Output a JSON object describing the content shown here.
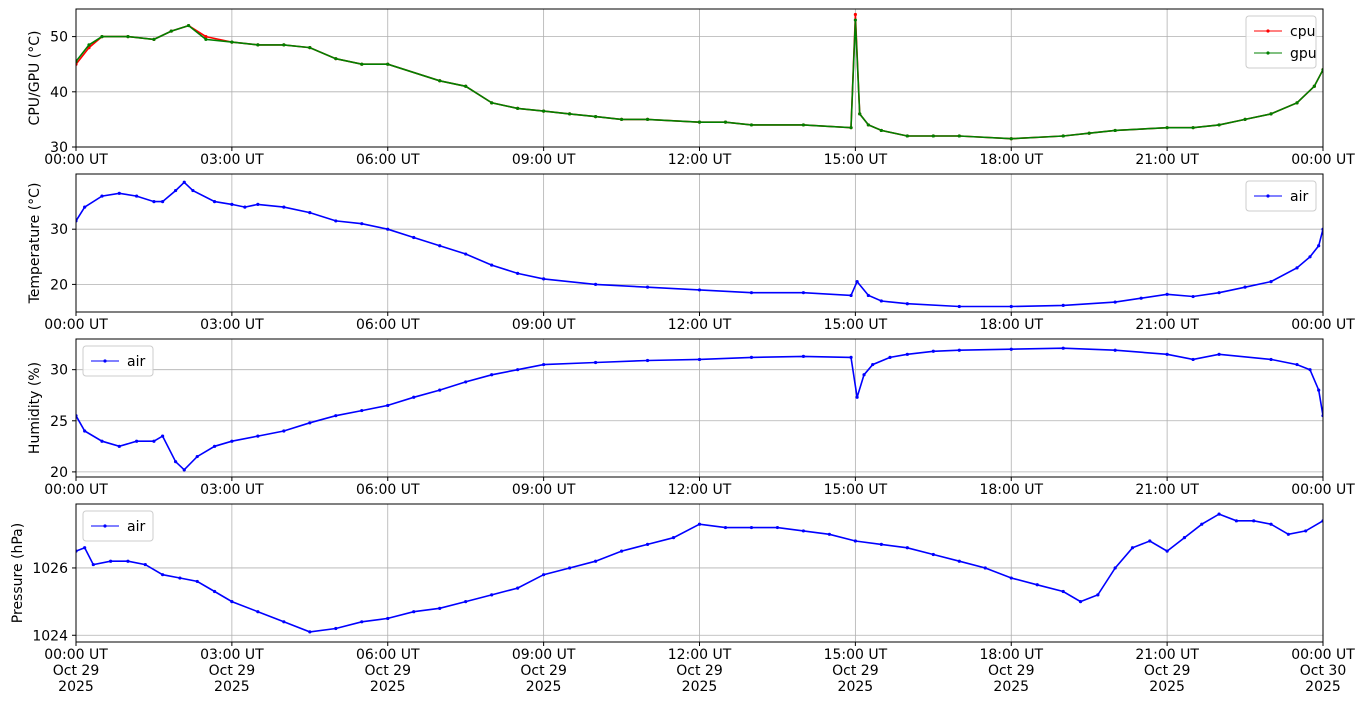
{
  "chart_data": [
    {
      "type": "line",
      "ylabel": "CPU/GPU (°C)",
      "ylim": [
        30,
        55
      ],
      "yticks": [
        30,
        40,
        50
      ],
      "xticks": [
        "00:00 UT",
        "03:00 UT",
        "06:00 UT",
        "09:00 UT",
        "12:00 UT",
        "15:00 UT",
        "18:00 UT",
        "21:00 UT",
        "00:00 UT"
      ],
      "grid": true,
      "legend_position": "upper right",
      "series": [
        {
          "name": "cpu",
          "color": "#ff0000",
          "x": [
            "00:00",
            "00:15",
            "00:30",
            "01:00",
            "01:30",
            "01:50",
            "02:10",
            "02:30",
            "03:00",
            "03:30",
            "04:00",
            "04:30",
            "05:00",
            "05:30",
            "06:00",
            "07:00",
            "07:30",
            "08:00",
            "08:30",
            "09:00",
            "09:30",
            "10:00",
            "10:30",
            "11:00",
            "12:00",
            "12:30",
            "13:00",
            "14:00",
            "14:55",
            "15:00",
            "15:05",
            "15:15",
            "15:30",
            "16:00",
            "16:30",
            "17:00",
            "18:00",
            "19:00",
            "19:30",
            "20:00",
            "21:00",
            "21:30",
            "22:00",
            "22:30",
            "23:00",
            "23:30",
            "23:50",
            "00:00"
          ],
          "y": [
            45,
            48,
            50,
            50,
            49.5,
            51,
            52,
            50,
            49,
            48.5,
            48.5,
            48,
            46,
            45,
            45,
            42,
            41,
            38,
            37,
            36.5,
            36,
            35.5,
            35,
            35,
            34.5,
            34.5,
            34,
            34,
            33.5,
            54,
            36,
            34,
            33,
            32,
            32,
            32,
            31.5,
            32,
            32.5,
            33,
            33.5,
            33.5,
            34,
            35,
            36,
            38,
            41,
            44
          ]
        },
        {
          "name": "gpu",
          "color": "#008000",
          "x": [
            "00:00",
            "00:15",
            "00:30",
            "01:00",
            "01:30",
            "01:50",
            "02:10",
            "02:30",
            "03:00",
            "03:30",
            "04:00",
            "04:30",
            "05:00",
            "05:30",
            "06:00",
            "07:00",
            "07:30",
            "08:00",
            "08:30",
            "09:00",
            "09:30",
            "10:00",
            "10:30",
            "11:00",
            "12:00",
            "12:30",
            "13:00",
            "14:00",
            "14:55",
            "15:00",
            "15:05",
            "15:15",
            "15:30",
            "16:00",
            "16:30",
            "17:00",
            "18:00",
            "19:00",
            "19:30",
            "20:00",
            "21:00",
            "21:30",
            "22:00",
            "22:30",
            "23:00",
            "23:30",
            "23:50",
            "00:00"
          ],
          "y": [
            45.5,
            48.5,
            50,
            50,
            49.5,
            51,
            52,
            49.5,
            49,
            48.5,
            48.5,
            48,
            46,
            45,
            45,
            42,
            41,
            38,
            37,
            36.5,
            36,
            35.5,
            35,
            35,
            34.5,
            34.5,
            34,
            34,
            33.5,
            53,
            36,
            34,
            33,
            32,
            32,
            32,
            31.5,
            32,
            32.5,
            33,
            33.5,
            33.5,
            34,
            35,
            36,
            38,
            41,
            44
          ]
        }
      ]
    },
    {
      "type": "line",
      "ylabel": "Temperature (°C)",
      "ylim": [
        15,
        40
      ],
      "yticks": [
        20,
        30
      ],
      "xticks": [
        "00:00 UT",
        "03:00 UT",
        "06:00 UT",
        "09:00 UT",
        "12:00 UT",
        "15:00 UT",
        "18:00 UT",
        "21:00 UT",
        "00:00 UT"
      ],
      "grid": true,
      "legend_position": "upper right",
      "series": [
        {
          "name": "air",
          "color": "#0000ff",
          "x": [
            "00:00",
            "00:10",
            "00:30",
            "00:50",
            "01:10",
            "01:30",
            "01:40",
            "01:55",
            "02:05",
            "02:15",
            "02:40",
            "03:00",
            "03:15",
            "03:30",
            "04:00",
            "04:30",
            "05:00",
            "05:30",
            "06:00",
            "06:30",
            "07:00",
            "07:30",
            "08:00",
            "08:30",
            "09:00",
            "10:00",
            "11:00",
            "12:00",
            "13:00",
            "14:00",
            "14:55",
            "15:02",
            "15:15",
            "15:30",
            "16:00",
            "17:00",
            "18:00",
            "19:00",
            "20:00",
            "20:30",
            "21:00",
            "21:30",
            "22:00",
            "22:30",
            "23:00",
            "23:30",
            "23:45",
            "23:55",
            "00:00"
          ],
          "y": [
            31.5,
            34,
            36,
            36.5,
            36,
            35,
            35,
            37,
            38.5,
            37,
            35,
            34.5,
            34,
            34.5,
            34,
            33,
            31.5,
            31,
            30,
            28.5,
            27,
            25.5,
            23.5,
            22,
            21,
            20,
            19.5,
            19,
            18.5,
            18.5,
            18,
            20.5,
            18,
            17,
            16.5,
            16,
            16,
            16.2,
            16.8,
            17.5,
            18.2,
            17.8,
            18.5,
            19.5,
            20.5,
            23,
            25,
            27,
            30
          ]
        }
      ]
    },
    {
      "type": "line",
      "ylabel": "Humidity (%)",
      "ylim": [
        19.5,
        33
      ],
      "yticks": [
        20,
        25,
        30
      ],
      "xticks": [
        "00:00 UT",
        "03:00 UT",
        "06:00 UT",
        "09:00 UT",
        "12:00 UT",
        "15:00 UT",
        "18:00 UT",
        "21:00 UT",
        "00:00 UT"
      ],
      "grid": true,
      "legend_position": "upper left",
      "series": [
        {
          "name": "air",
          "color": "#0000ff",
          "x": [
            "00:00",
            "00:10",
            "00:30",
            "00:50",
            "01:10",
            "01:30",
            "01:40",
            "01:55",
            "02:05",
            "02:20",
            "02:40",
            "03:00",
            "03:30",
            "04:00",
            "04:30",
            "05:00",
            "05:30",
            "06:00",
            "06:30",
            "07:00",
            "07:30",
            "08:00",
            "08:30",
            "09:00",
            "10:00",
            "11:00",
            "12:00",
            "13:00",
            "14:00",
            "14:55",
            "15:02",
            "15:10",
            "15:20",
            "15:40",
            "16:00",
            "16:30",
            "17:00",
            "18:00",
            "19:00",
            "20:00",
            "21:00",
            "21:30",
            "22:00",
            "23:00",
            "23:30",
            "23:45",
            "23:55",
            "00:00"
          ],
          "y": [
            25.5,
            24,
            23,
            22.5,
            23,
            23,
            23.5,
            21,
            20.2,
            21.5,
            22.5,
            23,
            23.5,
            24,
            24.8,
            25.5,
            26,
            26.5,
            27.3,
            28,
            28.8,
            29.5,
            30,
            30.5,
            30.7,
            30.9,
            31,
            31.2,
            31.3,
            31.2,
            27.3,
            29.5,
            30.5,
            31.2,
            31.5,
            31.8,
            31.9,
            32,
            32.1,
            31.9,
            31.5,
            31,
            31.5,
            31,
            30.5,
            30,
            28,
            25.5
          ]
        }
      ]
    },
    {
      "type": "line",
      "ylabel": "Pressure (hPa)",
      "ylim": [
        1023.8,
        1027.9
      ],
      "yticks": [
        1024,
        1026
      ],
      "xticks": [
        "00:00 UT\nOct 29\n2025",
        "03:00 UT\nOct 29\n2025",
        "06:00 UT\nOct 29\n2025",
        "09:00 UT\nOct 29\n2025",
        "12:00 UT\nOct 29\n2025",
        "15:00 UT\nOct 29\n2025",
        "18:00 UT\nOct 29\n2025",
        "21:00 UT\nOct 29\n2025",
        "00:00 UT\nOct 30\n2025"
      ],
      "grid": true,
      "legend_position": "upper left",
      "series": [
        {
          "name": "air",
          "color": "#0000ff",
          "x": [
            "00:00",
            "00:10",
            "00:20",
            "00:40",
            "01:00",
            "01:20",
            "01:40",
            "02:00",
            "02:20",
            "02:40",
            "03:00",
            "03:30",
            "04:00",
            "04:30",
            "05:00",
            "05:30",
            "06:00",
            "06:30",
            "07:00",
            "07:30",
            "08:00",
            "08:30",
            "09:00",
            "09:30",
            "10:00",
            "10:30",
            "11:00",
            "11:30",
            "12:00",
            "12:30",
            "13:00",
            "13:30",
            "14:00",
            "14:30",
            "15:00",
            "15:30",
            "16:00",
            "16:30",
            "17:00",
            "17:30",
            "18:00",
            "18:30",
            "19:00",
            "19:20",
            "19:40",
            "20:00",
            "20:20",
            "20:40",
            "21:00",
            "21:20",
            "21:40",
            "22:00",
            "22:20",
            "22:40",
            "23:00",
            "23:20",
            "23:40",
            "00:00"
          ],
          "y": [
            1026.5,
            1026.6,
            1026.1,
            1026.2,
            1026.2,
            1026.1,
            1025.8,
            1025.7,
            1025.6,
            1025.3,
            1025,
            1024.7,
            1024.4,
            1024.1,
            1024.2,
            1024.4,
            1024.5,
            1024.7,
            1024.8,
            1025,
            1025.2,
            1025.4,
            1025.8,
            1026,
            1026.2,
            1026.5,
            1026.7,
            1026.9,
            1027.3,
            1027.2,
            1027.2,
            1027.2,
            1027.1,
            1027.0,
            1026.8,
            1026.7,
            1026.6,
            1026.4,
            1026.2,
            1026.0,
            1025.7,
            1025.5,
            1025.3,
            1025.0,
            1025.2,
            1026.0,
            1026.6,
            1026.8,
            1026.5,
            1026.9,
            1027.3,
            1027.6,
            1027.4,
            1027.4,
            1027.3,
            1027.0,
            1027.1,
            1027.4
          ]
        }
      ]
    }
  ]
}
